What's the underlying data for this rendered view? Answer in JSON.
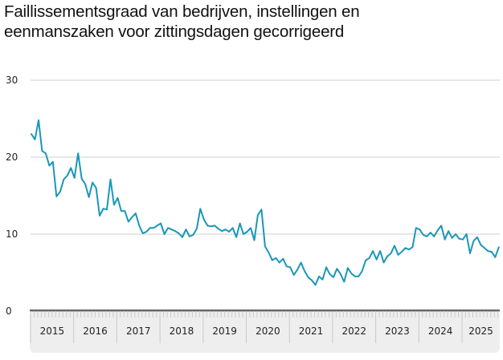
{
  "chart_data": {
    "type": "line",
    "title": "Faillissementsgraad van bedrijven, instellingen en eenmanszaken voor zittingsdagen gecorrigeerd",
    "title_lines": [
      "Faillissementsgraad van bedrijven, instellingen en",
      "eenmanszaken voor zittingsdagen gecorrigeerd"
    ],
    "xlabel": "",
    "ylabel": "",
    "ylim": [
      0,
      30
    ],
    "yticks": [
      0,
      10,
      20,
      30
    ],
    "ytick_labels": [
      "0",
      "10",
      "20",
      "30"
    ],
    "grid": true,
    "legend": "none",
    "x_start": "2015-01",
    "x_frequency": "monthly",
    "xtick_labels": [
      "2015",
      "2016",
      "2017",
      "2018",
      "2019",
      "2020",
      "2021",
      "2022",
      "2023",
      "2024",
      "2025"
    ],
    "series": [
      {
        "name": "Faillissementsgraad",
        "color": "#1a97b8",
        "values": [
          23.0,
          22.3,
          24.8,
          20.8,
          20.5,
          18.9,
          19.4,
          14.9,
          15.5,
          17.1,
          17.6,
          18.6,
          17.3,
          20.5,
          17.2,
          16.5,
          14.8,
          16.7,
          16.0,
          12.4,
          13.3,
          13.2,
          17.1,
          13.8,
          14.7,
          13.0,
          13.0,
          11.6,
          12.2,
          12.7,
          11.1,
          10.1,
          10.3,
          10.8,
          10.8,
          11.1,
          11.4,
          10.0,
          10.8,
          10.6,
          10.4,
          10.1,
          9.6,
          10.6,
          9.7,
          9.9,
          10.7,
          13.3,
          11.9,
          11.1,
          11.0,
          11.1,
          10.7,
          10.4,
          10.6,
          10.3,
          10.8,
          9.6,
          11.4,
          10.0,
          10.3,
          10.8,
          9.2,
          12.5,
          13.2,
          8.4,
          7.6,
          6.6,
          6.9,
          6.3,
          6.8,
          5.8,
          5.7,
          4.7,
          5.4,
          6.3,
          5.2,
          4.4,
          4.0,
          3.4,
          4.5,
          4.1,
          5.7,
          4.8,
          4.4,
          5.5,
          4.8,
          3.8,
          5.6,
          4.9,
          4.5,
          4.5,
          5.2,
          6.6,
          6.9,
          7.8,
          6.7,
          7.8,
          6.3,
          7.1,
          7.5,
          8.5,
          7.3,
          7.7,
          8.2,
          8.0,
          8.3,
          10.8,
          10.6,
          9.9,
          9.7,
          10.2,
          9.7,
          10.5,
          11.1,
          9.3,
          10.4,
          9.5,
          10.0,
          9.4,
          9.3,
          10.0,
          7.5,
          9.1,
          9.6,
          8.6,
          8.2,
          7.8,
          7.7,
          7.0,
          8.3
        ]
      }
    ]
  },
  "scrollbar": {
    "label": "time-range navigator"
  }
}
